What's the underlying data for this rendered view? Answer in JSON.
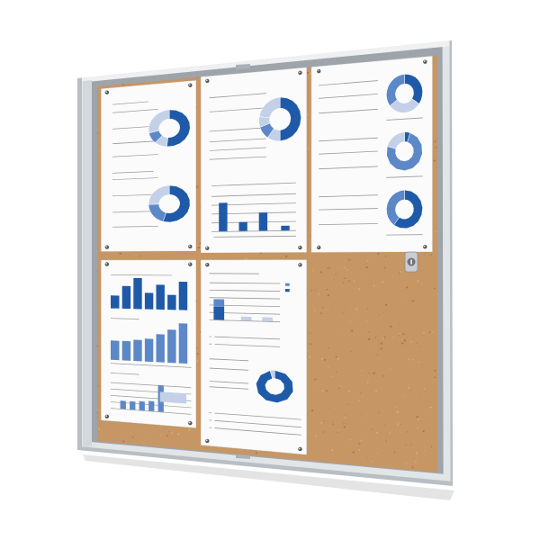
{
  "colors": {
    "background": "#ffffff",
    "frame_outer": "#b9bec3",
    "frame_inner": "#e2e5e8",
    "frame_rail": "#9ea4aa",
    "cork": "#c69665",
    "cork_dark": "#8f6236",
    "cork_light": "#e0b98c",
    "paper": "#fbfbfb",
    "chart_dark_blue": "#1f5aa8",
    "chart_mid_blue": "#5d88c8",
    "chart_light_blue": "#c3d0e8",
    "text_line": "#9a9a9a",
    "lock": "#6d7378"
  },
  "board": {
    "type": "sliding-door cork notice board in aluminium frame",
    "posters": [
      {
        "kind": "two donut charts"
      },
      {
        "kind": "donut chart and bar chart"
      },
      {
        "kind": "three donut charts"
      },
      {
        "kind": "three bar charts"
      },
      {
        "kind": "stacked bars, bullet list and donut chart"
      }
    ],
    "empty_area": "cork",
    "lock_icon": "lock-icon"
  }
}
